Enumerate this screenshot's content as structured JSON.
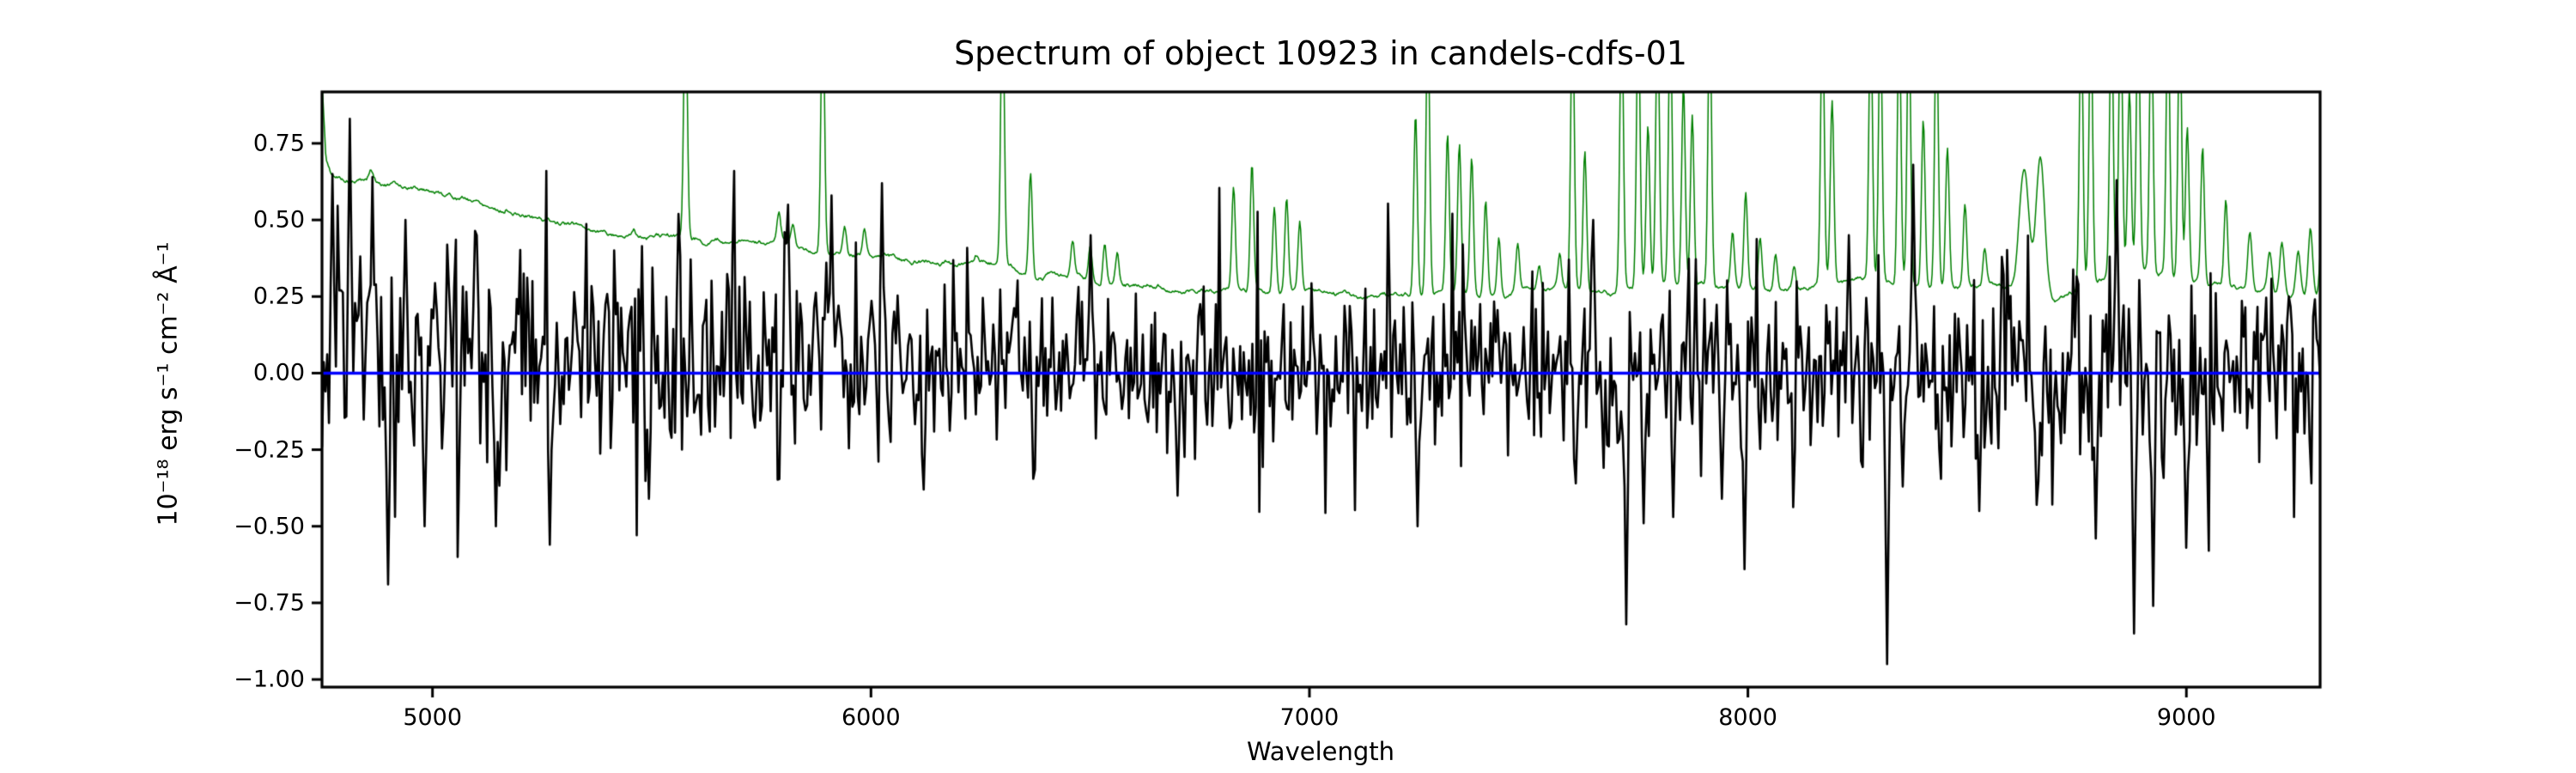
{
  "figure": {
    "background_color": "#ffffff",
    "title": "Spectrum of object 10923 in candels-cdfs-01",
    "xlabel": "Wavelength",
    "ylabel": "10⁻¹⁸ erg s⁻¹ cm⁻² Å⁻¹"
  },
  "chart_data": {
    "type": "line",
    "title": "Spectrum of object 10923 in candels-cdfs-01",
    "xlabel": "Wavelength",
    "ylabel": "10^-18 erg s^-1 cm^-2 A^-1",
    "grid": false,
    "legend": null,
    "xlim": [
      4748,
      9305
    ],
    "ylim": [
      -1.025,
      0.918
    ],
    "x_ticks": [
      {
        "v": 5000,
        "label": "5000"
      },
      {
        "v": 6000,
        "label": "6000"
      },
      {
        "v": 7000,
        "label": "7000"
      },
      {
        "v": 8000,
        "label": "8000"
      },
      {
        "v": 9000,
        "label": "9000"
      }
    ],
    "y_ticks": [
      {
        "v": 0.75,
        "label": "0.75"
      },
      {
        "v": 0.5,
        "label": "0.50"
      },
      {
        "v": 0.25,
        "label": "0.25"
      },
      {
        "v": 0.0,
        "label": "0.00"
      },
      {
        "v": -0.25,
        "label": "−0.25"
      },
      {
        "v": -0.5,
        "label": "−0.50"
      },
      {
        "v": -0.75,
        "label": "−0.75"
      },
      {
        "v": -1.0,
        "label": "−1.00"
      }
    ],
    "series": [
      {
        "name": "sky-error-spectrum",
        "color": "#008000",
        "line_width": 1.5,
        "n_points": 2200,
        "seed": 5,
        "wiggle_amp": 0.01,
        "continuum": [
          [
            4748,
            0.95
          ],
          [
            4757,
            0.7
          ],
          [
            4770,
            0.64
          ],
          [
            4800,
            0.63
          ],
          [
            4860,
            0.625
          ],
          [
            4900,
            0.615
          ],
          [
            5000,
            0.6
          ],
          [
            5100,
            0.565
          ],
          [
            5200,
            0.525
          ],
          [
            5300,
            0.49
          ],
          [
            5400,
            0.462
          ],
          [
            5500,
            0.447
          ],
          [
            5600,
            0.438
          ],
          [
            5700,
            0.428
          ],
          [
            5800,
            0.415
          ],
          [
            5900,
            0.4
          ],
          [
            6000,
            0.39
          ],
          [
            6100,
            0.378
          ],
          [
            6200,
            0.36
          ],
          [
            6300,
            0.345
          ],
          [
            6400,
            0.33
          ],
          [
            6500,
            0.315
          ],
          [
            6600,
            0.3
          ],
          [
            6700,
            0.285
          ],
          [
            6800,
            0.272
          ],
          [
            6900,
            0.262
          ],
          [
            7000,
            0.258
          ],
          [
            7100,
            0.252
          ],
          [
            7200,
            0.25
          ],
          [
            7300,
            0.252
          ],
          [
            7400,
            0.25
          ],
          [
            7500,
            0.272
          ],
          [
            7600,
            0.268
          ],
          [
            7700,
            0.262
          ],
          [
            7800,
            0.3
          ],
          [
            7900,
            0.29
          ],
          [
            8000,
            0.28
          ],
          [
            8100,
            0.272
          ],
          [
            8200,
            0.3
          ],
          [
            8300,
            0.31
          ],
          [
            8400,
            0.3
          ],
          [
            8500,
            0.285
          ],
          [
            8600,
            0.27
          ],
          [
            8700,
            0.252
          ],
          [
            8800,
            0.3
          ],
          [
            8900,
            0.32
          ],
          [
            9000,
            0.3
          ],
          [
            9100,
            0.268
          ],
          [
            9200,
            0.26
          ],
          [
            9305,
            0.26
          ]
        ],
        "emission_lines": [
          [
            4860,
            0.66,
            5
          ],
          [
            5170,
            0.55,
            4
          ],
          [
            5460,
            0.48,
            4
          ],
          [
            5577,
            1.25,
            4
          ],
          [
            5790,
            0.5,
            4
          ],
          [
            5822,
            0.48,
            4
          ],
          [
            5890,
            1.25,
            4
          ],
          [
            5940,
            0.49,
            4
          ],
          [
            5985,
            0.47,
            4
          ],
          [
            6240,
            0.38,
            4
          ],
          [
            6300,
            1.25,
            4
          ],
          [
            6364,
            0.67,
            4
          ],
          [
            6460,
            0.43,
            4
          ],
          [
            6500,
            0.42,
            4
          ],
          [
            6533,
            0.44,
            4
          ],
          [
            6562,
            0.41,
            4
          ],
          [
            6827,
            0.61,
            4
          ],
          [
            6869,
            0.68,
            4
          ],
          [
            6920,
            0.55,
            4
          ],
          [
            6948,
            0.56,
            4
          ],
          [
            6978,
            0.48,
            4
          ],
          [
            7242,
            0.85,
            4
          ],
          [
            7270,
            1.2,
            4
          ],
          [
            7315,
            0.77,
            4
          ],
          [
            7342,
            0.73,
            4
          ],
          [
            7370,
            0.7,
            4
          ],
          [
            7402,
            0.56,
            4
          ],
          [
            7432,
            0.45,
            4
          ],
          [
            7475,
            0.42,
            4
          ],
          [
            7524,
            0.35,
            4
          ],
          [
            7571,
            0.38,
            4
          ],
          [
            7600,
            1.2,
            4
          ],
          [
            7628,
            0.72,
            4
          ],
          [
            7712,
            1.2,
            4
          ],
          [
            7750,
            1.2,
            4
          ],
          [
            7772,
            0.8,
            4
          ],
          [
            7794,
            1.2,
            4
          ],
          [
            7823,
            1.2,
            4
          ],
          [
            7853,
            0.95,
            4
          ],
          [
            7873,
            0.85,
            4
          ],
          [
            7913,
            1.2,
            4
          ],
          [
            7965,
            0.45,
            4
          ],
          [
            7995,
            0.6,
            4
          ],
          [
            8028,
            0.45,
            4
          ],
          [
            8063,
            0.4,
            4
          ],
          [
            8105,
            0.35,
            4
          ],
          [
            8170,
            1.2,
            4
          ],
          [
            8192,
            0.9,
            4
          ],
          [
            8280,
            1.2,
            4
          ],
          [
            8302,
            1.2,
            4
          ],
          [
            8345,
            1.2,
            4
          ],
          [
            8367,
            1.2,
            4
          ],
          [
            8400,
            0.85,
            4
          ],
          [
            8430,
            1.2,
            4
          ],
          [
            8455,
            0.75,
            4
          ],
          [
            8495,
            0.55,
            4
          ],
          [
            8540,
            0.4,
            4
          ],
          [
            8630,
            0.68,
            11
          ],
          [
            8667,
            0.73,
            10
          ],
          [
            8760,
            1.2,
            4
          ],
          [
            8782,
            1.2,
            4
          ],
          [
            8829,
            1.2,
            4
          ],
          [
            8850,
            1.2,
            4
          ],
          [
            8870,
            0.9,
            4
          ],
          [
            8890,
            1.2,
            4
          ],
          [
            8920,
            1.2,
            4
          ],
          [
            8958,
            1.2,
            4
          ],
          [
            8985,
            1.2,
            4
          ],
          [
            9002,
            0.8,
            4
          ],
          [
            9037,
            0.73,
            4
          ],
          [
            9090,
            0.56,
            4
          ],
          [
            9145,
            0.46,
            5
          ],
          [
            9190,
            0.4,
            5
          ],
          [
            9218,
            0.43,
            5
          ],
          [
            9255,
            0.4,
            5
          ],
          [
            9283,
            0.48,
            5
          ],
          [
            9310,
            0.5,
            5
          ]
        ]
      },
      {
        "name": "object-flux-spectrum",
        "color": "#000000",
        "line_width": 2.6,
        "n_points": 1150,
        "seed": 11,
        "tail_prob": 0.05,
        "tail_gain": 1.9,
        "pos_clamp_blue": 0.86,
        "pos_clamp_blue_limit": 4835,
        "pos_clamp": 0.66,
        "neg_clamp": -0.58,
        "mean_envelope": [
          [
            4748,
            0.1
          ],
          [
            5000,
            0.08
          ],
          [
            5600,
            0.05
          ],
          [
            6200,
            0.02
          ],
          [
            7000,
            0.01
          ],
          [
            9305,
            0.0
          ]
        ],
        "sigma_envelope": [
          [
            4748,
            0.3
          ],
          [
            4800,
            0.22
          ],
          [
            5000,
            0.17
          ],
          [
            5600,
            0.15
          ],
          [
            6200,
            0.135
          ],
          [
            7000,
            0.13
          ],
          [
            7600,
            0.14
          ],
          [
            8200,
            0.15
          ],
          [
            8800,
            0.165
          ],
          [
            9305,
            0.16
          ]
        ],
        "spikes": [
          [
            4770,
            0.65
          ],
          [
            4812,
            0.83
          ],
          [
            4862,
            0.64
          ],
          [
            4898,
            -0.69
          ],
          [
            4940,
            0.5
          ],
          [
            4982,
            -0.5
          ],
          [
            5059,
            -0.6
          ],
          [
            5100,
            0.45
          ],
          [
            5145,
            -0.5
          ],
          [
            5268,
            -0.56
          ],
          [
            5493,
            -0.41
          ],
          [
            5560,
            0.52
          ],
          [
            5810,
            0.55
          ],
          [
            5910,
            0.58
          ],
          [
            6027,
            0.62
          ],
          [
            6120,
            -0.38
          ],
          [
            6500,
            0.45
          ],
          [
            6700,
            -0.4
          ],
          [
            7246,
            -0.5
          ],
          [
            7350,
            0.42
          ],
          [
            7608,
            -0.36
          ],
          [
            7649,
            0.5
          ],
          [
            7723,
            -0.82
          ],
          [
            7764,
            -0.49
          ],
          [
            7831,
            -0.47
          ],
          [
            7940,
            -0.41
          ],
          [
            7991,
            -0.64
          ],
          [
            8230,
            0.45
          ],
          [
            8318,
            -0.95
          ],
          [
            8355,
            -0.37
          ],
          [
            8375,
            0.68
          ],
          [
            8526,
            -0.45
          ],
          [
            8659,
            -0.43
          ],
          [
            8794,
            -0.54
          ],
          [
            8842,
            0.63
          ],
          [
            8880,
            -0.85
          ],
          [
            8925,
            -0.76
          ],
          [
            9000,
            -0.57
          ],
          [
            9053,
            -0.58
          ],
          [
            9284,
            -0.36
          ]
        ]
      },
      {
        "name": "zero-flux-line",
        "color": "#0000ff",
        "line_width": 3.5,
        "y": 0
      }
    ]
  }
}
